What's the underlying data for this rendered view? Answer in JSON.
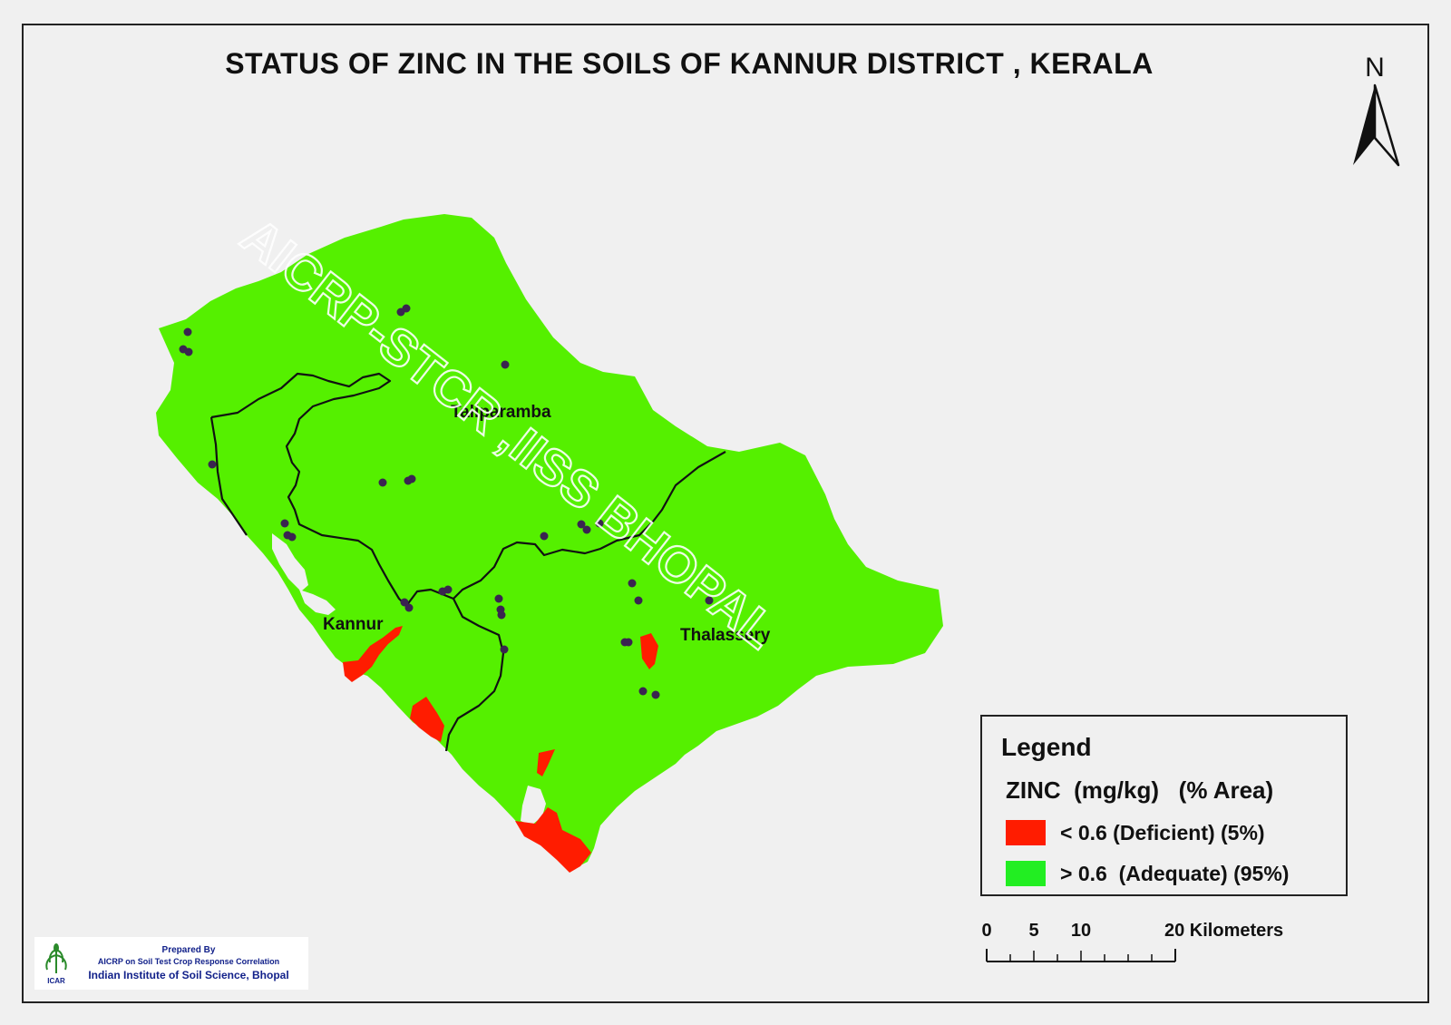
{
  "map": {
    "title": "STATUS OF ZINC  IN THE SOILS OF KANNUR  DISTRICT ,  KERALA",
    "watermark": "AICRP-STCR ,IISS BHOPAL",
    "north_label": "N",
    "regions": [
      {
        "name": "Taliparamba"
      },
      {
        "name": "Kannur"
      },
      {
        "name": "Thalassery"
      }
    ],
    "colors": {
      "adequate": "#55f000",
      "deficient": "#ff1c00",
      "boundary": "#111111",
      "sample_point": "#3a2450",
      "background": "#f0f0f0"
    }
  },
  "legend": {
    "title": "Legend",
    "header": "ZINC  (mg/kg)   (% Area)",
    "items": [
      {
        "label": "< 0.6 (Deficient) (5%)",
        "color": "#ff1c00"
      },
      {
        "label": "> 0.6  (Adequate) (95%)",
        "color": "#22ee22"
      }
    ]
  },
  "scale_bar": {
    "ticks": [
      "0",
      "5",
      "10",
      "20 Kilometers"
    ]
  },
  "credit": {
    "line1": "Prepared By",
    "line2": "AICRP on Soil Test Crop Response Correlation",
    "line3": "Indian Institute of Soil Science, Bhopal",
    "logo_text": "ICAR",
    "logo_icon": "icar-wheat-logo-icon"
  }
}
